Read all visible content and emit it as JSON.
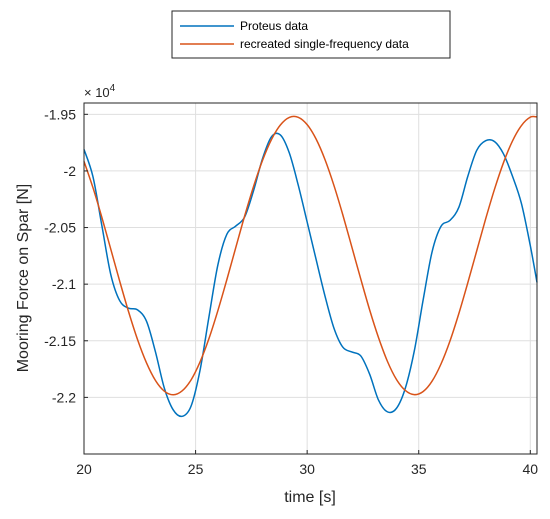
{
  "chart_data": {
    "type": "line",
    "title": "",
    "xlabel": "time [s]",
    "ylabel": "Mooring Force on Spar [N]",
    "xlim": [
      20,
      40.3
    ],
    "ylim": [
      -22500,
      -19400
    ],
    "y_exponent_label": "× 10⁴",
    "y_exponent_base": "× 10",
    "y_exponent_power": "4",
    "x_ticks": [
      20,
      25,
      30,
      35,
      40
    ],
    "x_tick_labels": [
      "20",
      "25",
      "30",
      "35",
      "40"
    ],
    "y_ticks": [
      -19500,
      -20000,
      -20500,
      -21000,
      -21500,
      -22000
    ],
    "y_tick_labels": [
      "-1.95",
      "-2",
      "-2.05",
      "-2.1",
      "-2.15",
      "-2.2"
    ],
    "grid": true,
    "legend_position": "top",
    "colors": {
      "proteus": "#0072BD",
      "recreated": "#D95319",
      "grid": "#dfdfdf",
      "axis": "#262626"
    },
    "series": [
      {
        "name": "Proteus data",
        "x": [
          20.0,
          20.4,
          20.8,
          21.2,
          21.6,
          22.0,
          22.4,
          22.8,
          23.2,
          23.6,
          24.0,
          24.4,
          24.8,
          25.2,
          25.6,
          26.0,
          26.4,
          26.8,
          27.2,
          27.6,
          28.0,
          28.4,
          28.8,
          29.2,
          29.6,
          30.0,
          30.4,
          30.8,
          31.2,
          31.6,
          32.0,
          32.4,
          32.8,
          33.2,
          33.6,
          34.0,
          34.4,
          34.8,
          35.2,
          35.6,
          36.0,
          36.4,
          36.8,
          37.2,
          37.6,
          38.0,
          38.4,
          38.8,
          39.2,
          39.6,
          40.0,
          40.3
        ],
        "y": [
          -19810,
          -20050,
          -20482,
          -20915,
          -21146,
          -21212,
          -21227,
          -21327,
          -21596,
          -21918,
          -22111,
          -22167,
          -22076,
          -21760,
          -21288,
          -20829,
          -20560,
          -20487,
          -20406,
          -20173,
          -19891,
          -19699,
          -19682,
          -19841,
          -20125,
          -20451,
          -20781,
          -21105,
          -21388,
          -21557,
          -21599,
          -21633,
          -21795,
          -22025,
          -22128,
          -22097,
          -21918,
          -21591,
          -21137,
          -20713,
          -20489,
          -20437,
          -20320,
          -20047,
          -19818,
          -19733,
          -19741,
          -19850,
          -20046,
          -20286,
          -20660,
          -20984
        ]
      },
      {
        "name": "recreated single-frequency data",
        "x": [
          20.0,
          20.4,
          20.8,
          21.2,
          21.6,
          22.0,
          22.4,
          22.8,
          23.2,
          23.6,
          24.0,
          24.4,
          24.8,
          25.2,
          25.6,
          26.0,
          26.4,
          26.8,
          27.2,
          27.6,
          28.0,
          28.4,
          28.8,
          29.2,
          29.6,
          30.0,
          30.4,
          30.8,
          31.2,
          31.6,
          32.0,
          32.4,
          32.8,
          33.2,
          33.6,
          34.0,
          34.4,
          34.8,
          35.2,
          35.6,
          36.0,
          36.4,
          36.8,
          37.2,
          37.6,
          38.0,
          38.4,
          38.8,
          39.2,
          39.6,
          40.0,
          40.3
        ],
        "y": [
          -19915,
          -20147,
          -20410,
          -20691,
          -20974,
          -21245,
          -21490,
          -21695,
          -21850,
          -21945,
          -21977,
          -21942,
          -21845,
          -21687,
          -21480,
          -21233,
          -20961,
          -20678,
          -20397,
          -20136,
          -19907,
          -19723,
          -19594,
          -19527,
          -19526,
          -19591,
          -19718,
          -19900,
          -20128,
          -20389,
          -20670,
          -20953,
          -21227,
          -21473,
          -21683,
          -21841,
          -21939,
          -21976,
          -21948,
          -21856,
          -21704,
          -21502,
          -21258,
          -20987,
          -20705,
          -20423,
          -20159,
          -19926,
          -19736,
          -19600,
          -19525,
          -19523
        ]
      }
    ]
  }
}
